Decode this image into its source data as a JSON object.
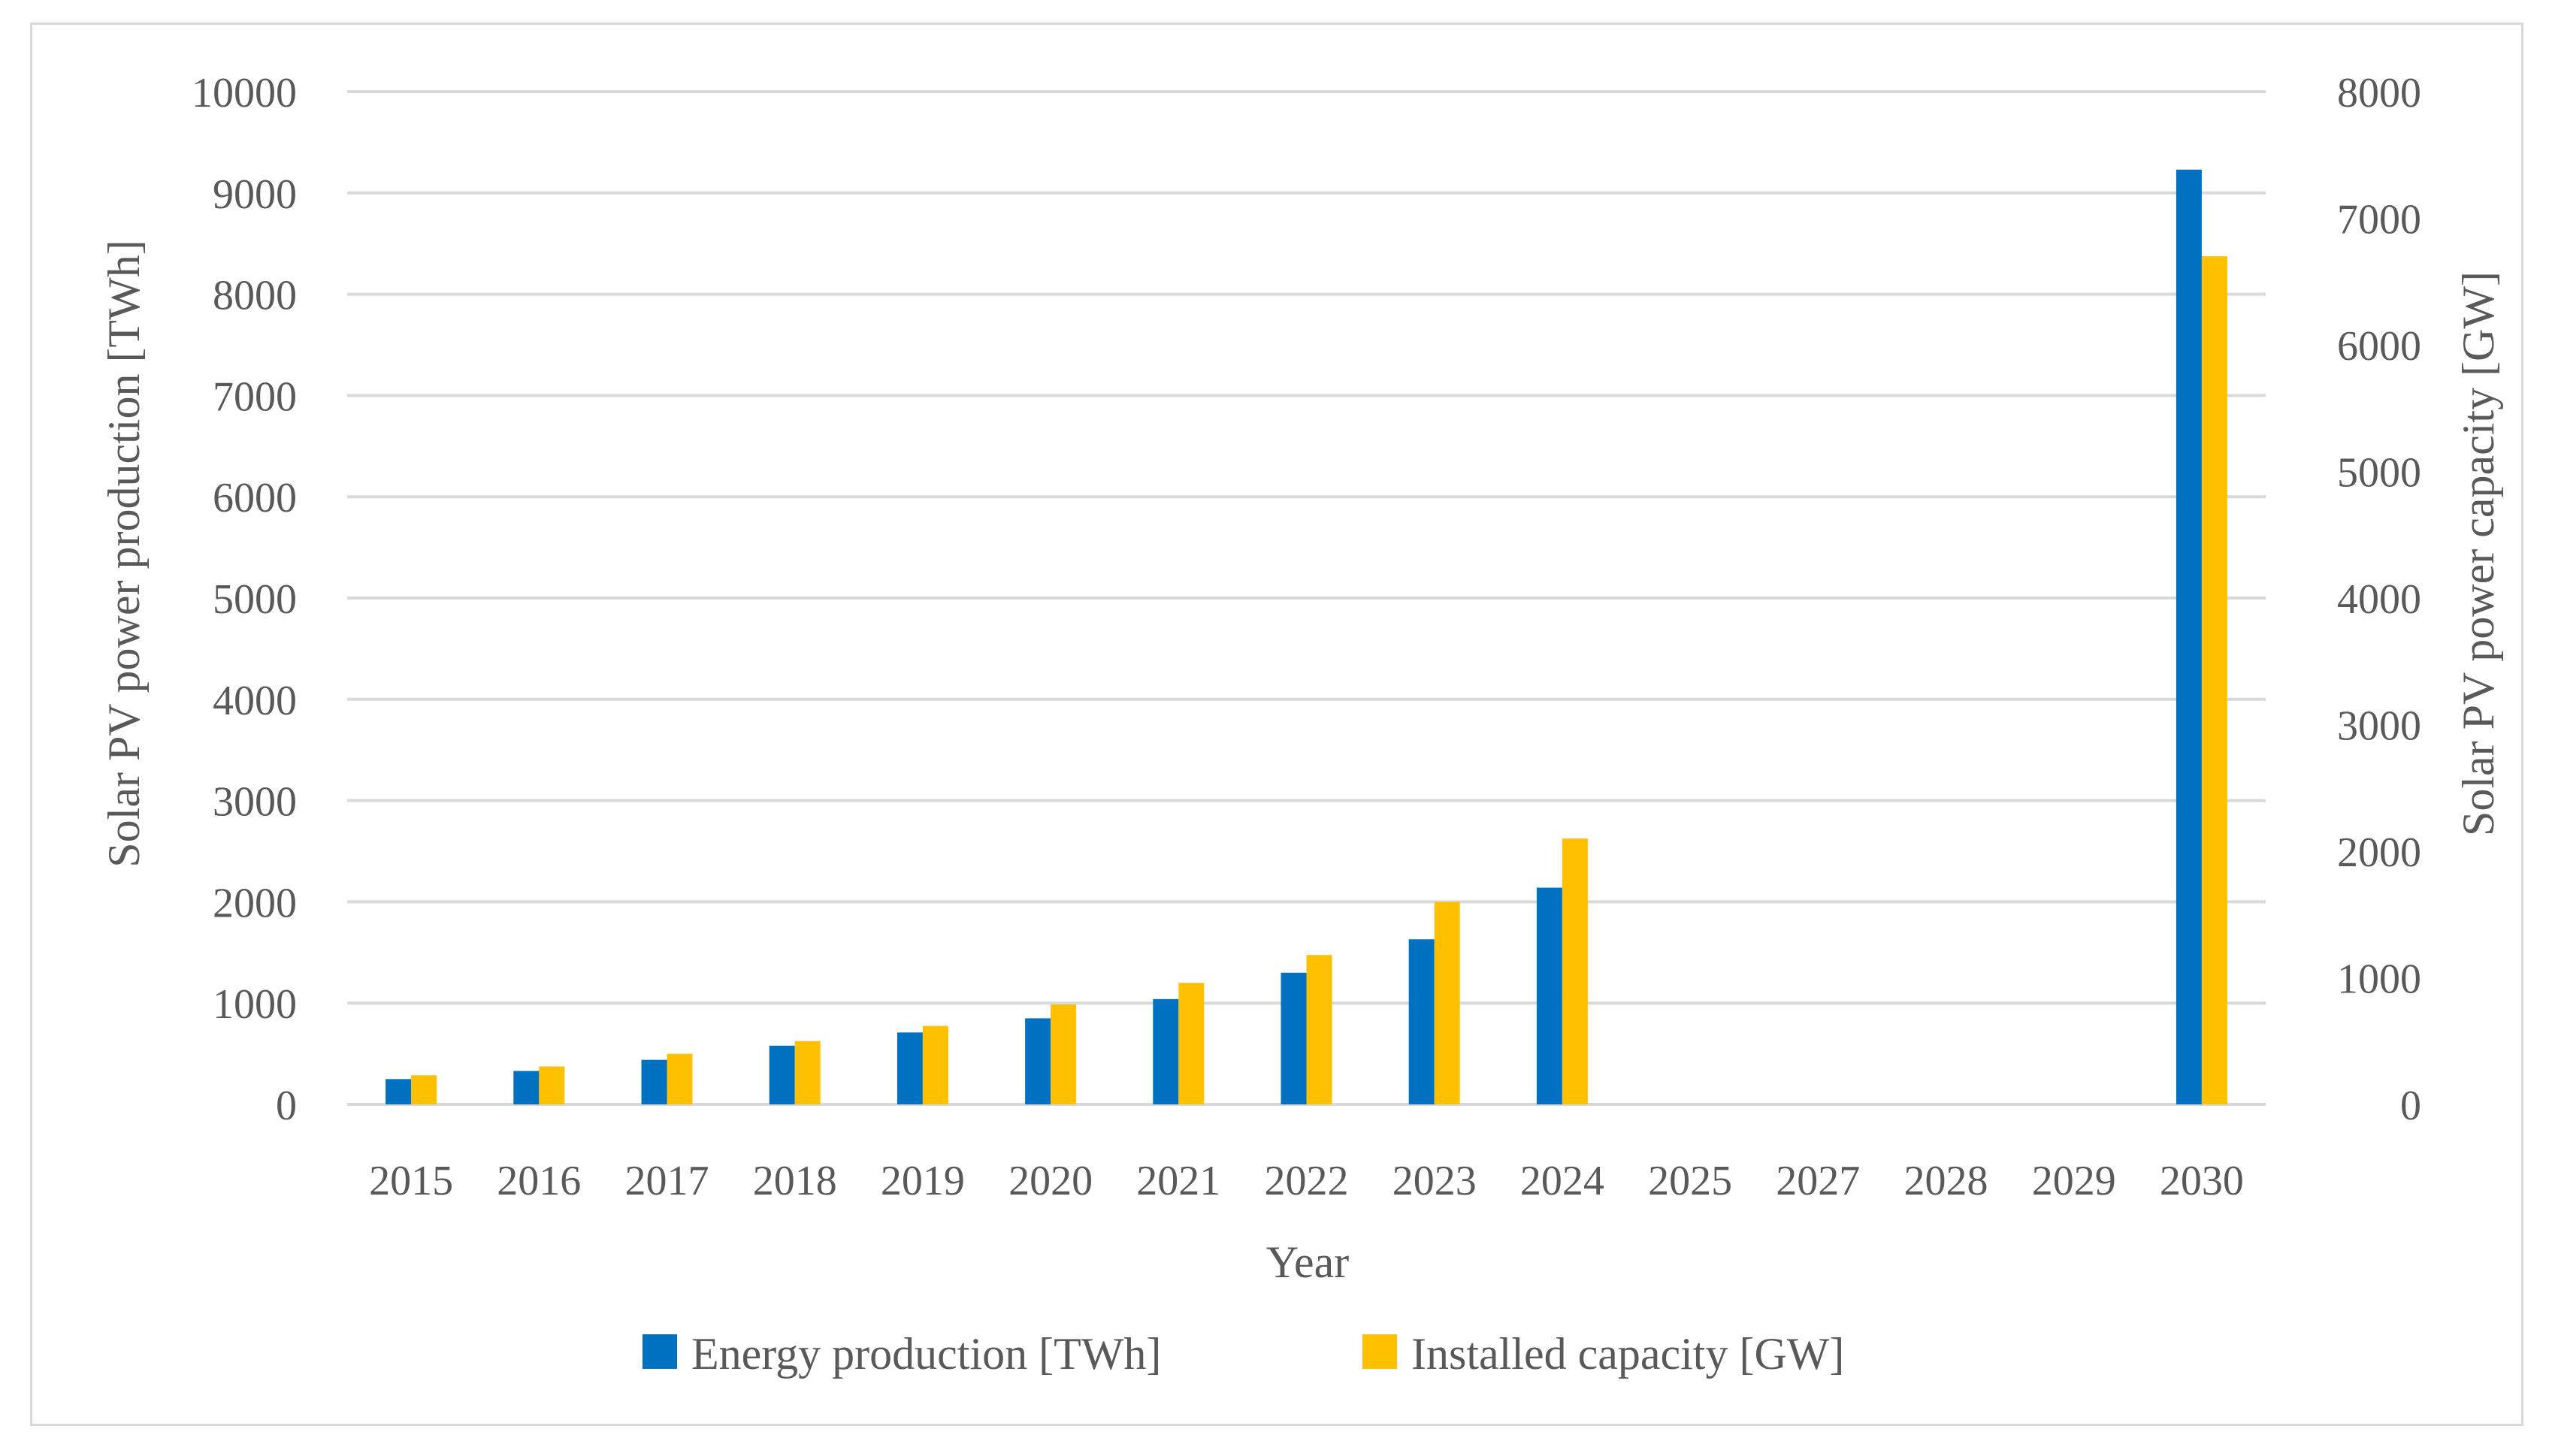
{
  "chart_data": {
    "type": "bar",
    "title": "",
    "xlabel": "Year",
    "ylabel_left": "Solar PV power production [TWh]",
    "ylabel_right": "Solar PV power capacity [GW]",
    "categories": [
      "2015",
      "2016",
      "2017",
      "2018",
      "2019",
      "2020",
      "2021",
      "2022",
      "2023",
      "2024",
      "2025",
      "2027",
      "2028",
      "2029",
      "2030"
    ],
    "ylim_left": [
      0,
      10000
    ],
    "ylim_right": [
      0,
      8000
    ],
    "yticks_left": [
      "0",
      "1000",
      "2000",
      "3000",
      "4000",
      "5000",
      "6000",
      "7000",
      "8000",
      "9000",
      "10000"
    ],
    "yticks_right": [
      "0",
      "1000",
      "2000",
      "3000",
      "4000",
      "5000",
      "6000",
      "7000",
      "8000"
    ],
    "grid": true,
    "legend_position": "bottom",
    "series": [
      {
        "name": "Energy production [TWh]",
        "axis": "left",
        "color": "#0070c0",
        "values": [
          250,
          330,
          440,
          580,
          710,
          850,
          1040,
          1300,
          1630,
          2140,
          null,
          null,
          null,
          null,
          9230
        ]
      },
      {
        "name": "Installed capacity [GW]",
        "axis": "right",
        "color": "#ffc000",
        "values": [
          230,
          300,
          400,
          500,
          620,
          790,
          960,
          1180,
          1600,
          2100,
          null,
          null,
          null,
          null,
          6700
        ]
      }
    ]
  }
}
